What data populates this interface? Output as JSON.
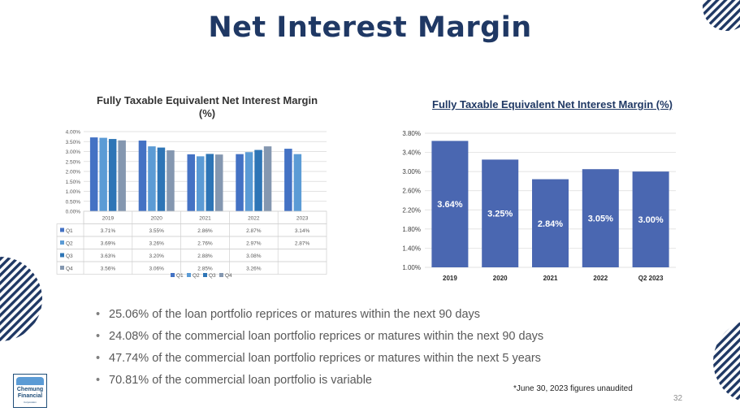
{
  "slide": {
    "title": "Net Interest Margin",
    "bullets": [
      "25.06% of the loan portfolio reprices or matures within the next 90 days",
      "24.08% of the commercial loan portfolio reprices or matures within the next 90 days",
      "47.74% of the commercial loan portfolio reprices or matures within the next 5 years",
      "70.81% of the commercial loan portfolio is variable"
    ],
    "footnote": "*June 30, 2023 figures unaudited",
    "page_number": "32",
    "logo": {
      "line1": "Chemung",
      "line2": "Financial",
      "line3": "Corporation"
    }
  },
  "colors": {
    "title": "#1f3864",
    "q1": "#4472c4",
    "q2": "#5b9bd5",
    "q3": "#2e75b6",
    "q4": "#8497b0",
    "bar": "#4a67b1",
    "stripes": "#1f3864"
  },
  "chart_data": [
    {
      "type": "bar",
      "title": "Fully Taxable Equivalent Net Interest Margin (%)",
      "categories": [
        "2019",
        "2020",
        "2021",
        "2022",
        "2023"
      ],
      "series": [
        {
          "name": "Q1",
          "values": [
            3.71,
            3.55,
            2.86,
            2.87,
            3.14
          ],
          "labels": [
            "3.71%",
            "3.55%",
            "2.86%",
            "2.87%",
            "3.14%"
          ]
        },
        {
          "name": "Q2",
          "values": [
            3.69,
            3.26,
            2.76,
            2.97,
            2.87
          ],
          "labels": [
            "3.69%",
            "3.26%",
            "2.76%",
            "2.97%",
            "2.87%"
          ]
        },
        {
          "name": "Q3",
          "values": [
            3.63,
            3.2,
            2.88,
            3.08,
            null
          ],
          "labels": [
            "3.63%",
            "3.20%",
            "2.88%",
            "3.08%",
            ""
          ]
        },
        {
          "name": "Q4",
          "values": [
            3.56,
            3.06,
            2.85,
            3.26,
            null
          ],
          "labels": [
            "3.56%",
            "3.06%",
            "2.85%",
            "3.26%",
            ""
          ]
        }
      ],
      "ylim": [
        0,
        4.0
      ],
      "yticks": [
        0,
        0.5,
        1.0,
        1.5,
        2.0,
        2.5,
        3.0,
        3.5,
        4.0
      ],
      "ytick_labels": [
        "0.00%",
        "0.50%",
        "1.00%",
        "1.50%",
        "2.00%",
        "2.50%",
        "3.00%",
        "3.50%",
        "4.00%"
      ],
      "data_table": true,
      "legend": "bottom",
      "grid": true
    },
    {
      "type": "bar",
      "title": "Fully Taxable Equivalent Net Interest Margin (%)",
      "categories": [
        "2019",
        "2020",
        "2021",
        "2022",
        "Q2 2023"
      ],
      "values": [
        3.64,
        3.25,
        2.84,
        3.05,
        3.0
      ],
      "labels": [
        "3.64%",
        "3.25%",
        "2.84%",
        "3.05%",
        "3.00%"
      ],
      "ylim": [
        1.0,
        3.8
      ],
      "yticks": [
        1.0,
        1.4,
        1.8,
        2.2,
        2.6,
        3.0,
        3.4,
        3.8
      ],
      "ytick_labels": [
        "1.00%",
        "1.40%",
        "1.80%",
        "2.20%",
        "2.60%",
        "3.00%",
        "3.40%",
        "3.80%"
      ],
      "grid": true
    }
  ]
}
